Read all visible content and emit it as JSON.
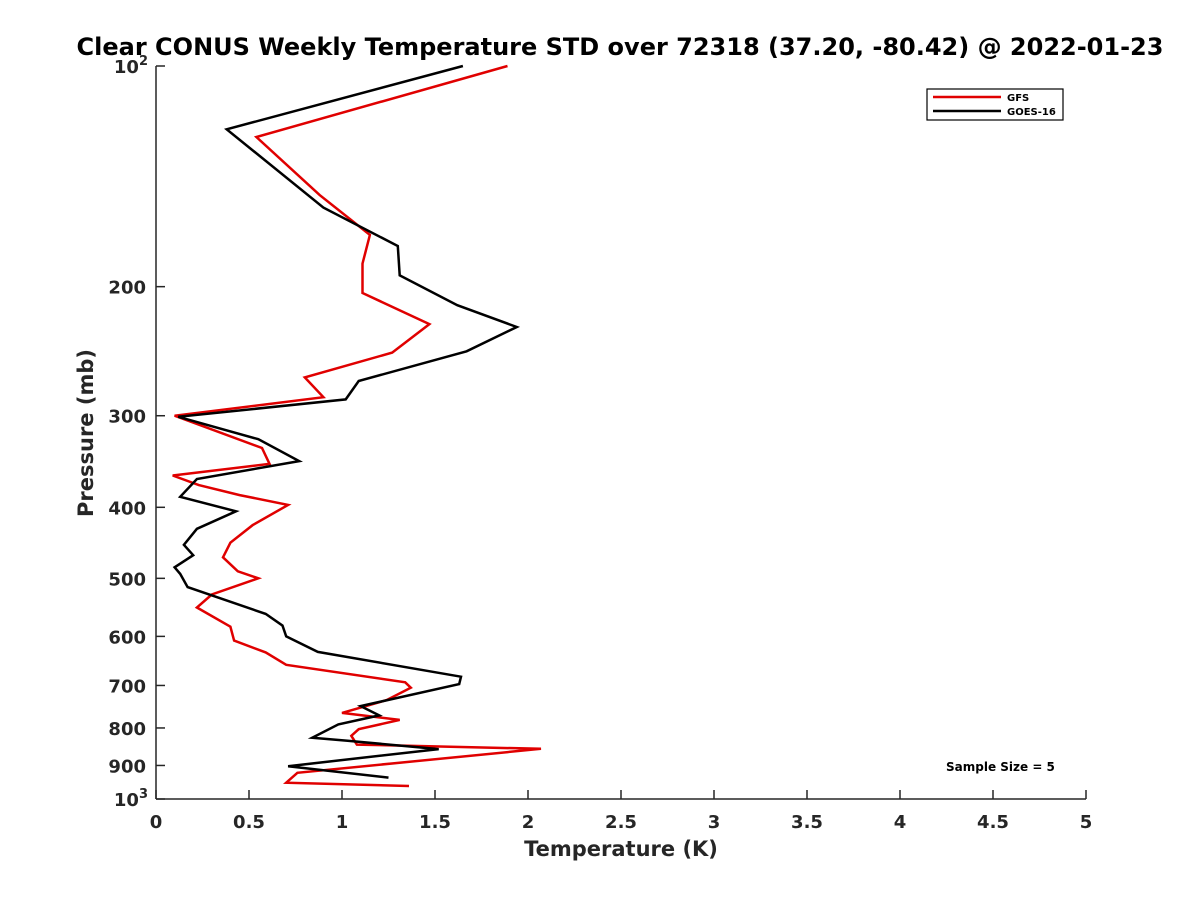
{
  "chart_data": {
    "type": "line",
    "title": "Clear CONUS Weekly Temperature STD over 72318 (37.20, -80.42) @ 2022-01-23",
    "xlabel": "Temperature (K)",
    "ylabel": "Pressure (mb)",
    "xlim": [
      0,
      5
    ],
    "ylim": [
      100,
      1000
    ],
    "y_scale": "log",
    "y_reversed": true,
    "x_ticks": [
      "0",
      "0.5",
      "1",
      "1.5",
      "2",
      "2.5",
      "3",
      "3.5",
      "4",
      "4.5",
      "5"
    ],
    "y_ticks": [
      {
        "value": 100,
        "label": "10",
        "exp": "2"
      },
      {
        "value": 200,
        "label": "200"
      },
      {
        "value": 300,
        "label": "300"
      },
      {
        "value": 400,
        "label": "400"
      },
      {
        "value": 500,
        "label": "500"
      },
      {
        "value": 600,
        "label": "600"
      },
      {
        "value": 700,
        "label": "700"
      },
      {
        "value": 800,
        "label": "800"
      },
      {
        "value": 900,
        "label": "900"
      },
      {
        "value": 1000,
        "label": "10",
        "exp": "3"
      }
    ],
    "grid": false,
    "legend_position": "top-right",
    "annotation": "Sample Size = 5",
    "series": [
      {
        "name": "GFS",
        "color": "#e00000",
        "points": [
          [
            1.89,
            100
          ],
          [
            0.54,
            125
          ],
          [
            0.88,
            150
          ],
          [
            1.15,
            170
          ],
          [
            1.11,
            186
          ],
          [
            1.11,
            204
          ],
          [
            1.47,
            225
          ],
          [
            1.27,
            246
          ],
          [
            0.8,
            266
          ],
          [
            0.9,
            283
          ],
          [
            0.1,
            300
          ],
          [
            0.57,
            332
          ],
          [
            0.61,
            349
          ],
          [
            0.09,
            362
          ],
          [
            0.23,
            373
          ],
          [
            0.45,
            385
          ],
          [
            0.71,
            397
          ],
          [
            0.52,
            423
          ],
          [
            0.4,
            447
          ],
          [
            0.36,
            468
          ],
          [
            0.44,
            489
          ],
          [
            0.55,
            500
          ],
          [
            0.3,
            526
          ],
          [
            0.22,
            548
          ],
          [
            0.4,
            582
          ],
          [
            0.42,
            608
          ],
          [
            0.59,
            631
          ],
          [
            0.7,
            656
          ],
          [
            1.34,
            693
          ],
          [
            1.37,
            705
          ],
          [
            1.24,
            733
          ],
          [
            1.0,
            763
          ],
          [
            1.31,
            780
          ],
          [
            1.09,
            803
          ],
          [
            1.05,
            820
          ],
          [
            1.08,
            843
          ],
          [
            2.07,
            854
          ],
          [
            0.76,
            921
          ],
          [
            0.7,
            950
          ],
          [
            1.36,
            960
          ]
        ]
      },
      {
        "name": "GOES-16",
        "color": "#000000",
        "points": [
          [
            1.65,
            100
          ],
          [
            0.38,
            122
          ],
          [
            0.9,
            156
          ],
          [
            1.3,
            176
          ],
          [
            1.31,
            193
          ],
          [
            1.62,
            212
          ],
          [
            1.94,
            227
          ],
          [
            1.67,
            245
          ],
          [
            1.09,
            269
          ],
          [
            1.02,
            285
          ],
          [
            0.12,
            301
          ],
          [
            0.55,
            323
          ],
          [
            0.77,
            346
          ],
          [
            0.22,
            366
          ],
          [
            0.13,
            387
          ],
          [
            0.43,
            405
          ],
          [
            0.22,
            428
          ],
          [
            0.15,
            450
          ],
          [
            0.2,
            465
          ],
          [
            0.1,
            483
          ],
          [
            0.13,
            493
          ],
          [
            0.17,
            514
          ],
          [
            0.59,
            559
          ],
          [
            0.68,
            580
          ],
          [
            0.7,
            600
          ],
          [
            0.87,
            630
          ],
          [
            1.64,
            681
          ],
          [
            1.63,
            697
          ],
          [
            1.1,
            747
          ],
          [
            1.2,
            769
          ],
          [
            0.98,
            791
          ],
          [
            0.84,
            825
          ],
          [
            1.03,
            833
          ],
          [
            1.52,
            855
          ],
          [
            0.71,
            902
          ],
          [
            1.25,
            935
          ]
        ]
      }
    ]
  }
}
